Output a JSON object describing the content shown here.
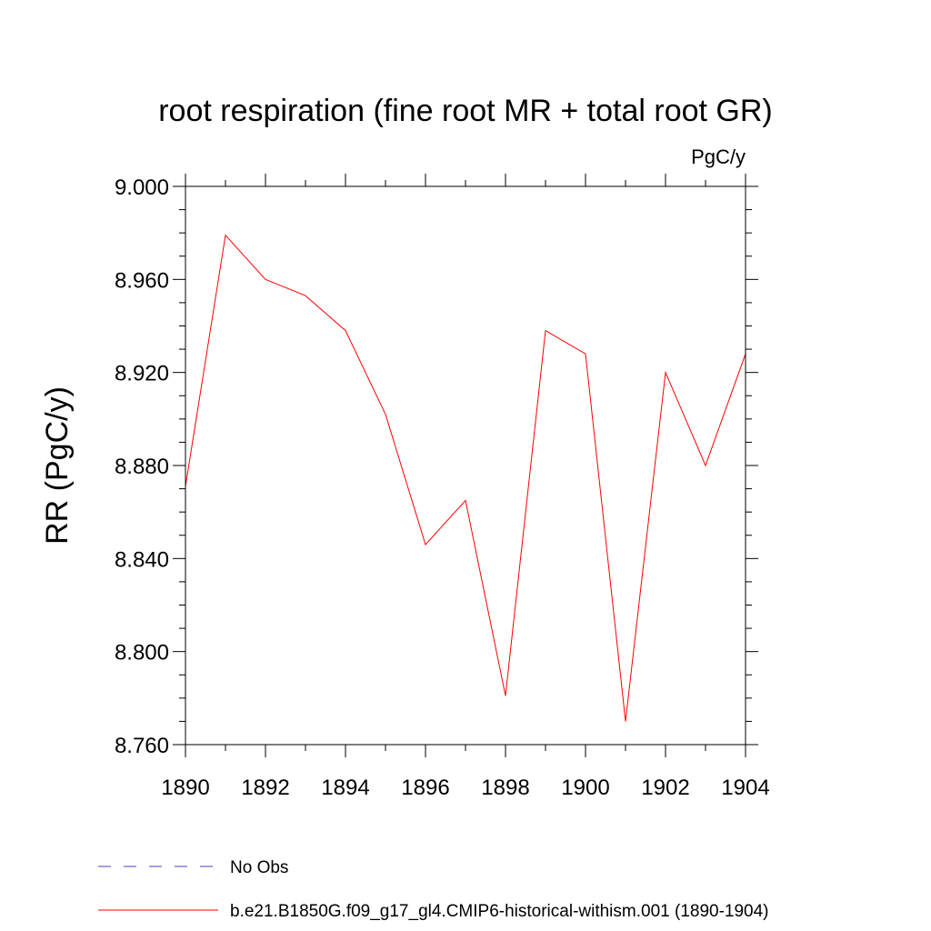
{
  "chart_data": {
    "type": "line",
    "title": "root respiration (fine root MR + total root GR)",
    "units": "PgC/y",
    "ylabel": "RR  (PgC/y)",
    "xlabel": "",
    "xlim": [
      1890,
      1904
    ],
    "ylim": [
      8.76,
      9.0
    ],
    "xticks": [
      1890,
      1892,
      1894,
      1896,
      1898,
      1900,
      1902,
      1904
    ],
    "xtick_labels": [
      "1890",
      "1892",
      "1894",
      "1896",
      "1898",
      "1900",
      "1902",
      "1904"
    ],
    "yticks": [
      8.76,
      8.8,
      8.84,
      8.88,
      8.92,
      8.96,
      9.0
    ],
    "ytick_labels": [
      "8.760",
      "8.800",
      "8.840",
      "8.880",
      "8.920",
      "8.960",
      "9.000"
    ],
    "grid": false,
    "legend_position": "bottom-left",
    "series": [
      {
        "name": "b.e21.B1850G.f09_g17_gl4.CMIP6-historical-withism.001 (1890-1904)",
        "color": "#ff0000",
        "style": "solid",
        "x": [
          1890,
          1891,
          1892,
          1893,
          1894,
          1895,
          1896,
          1897,
          1898,
          1899,
          1900,
          1901,
          1902,
          1903,
          1904
        ],
        "y": [
          8.871,
          8.979,
          8.96,
          8.953,
          8.938,
          8.902,
          8.846,
          8.865,
          8.781,
          8.938,
          8.928,
          8.77,
          8.92,
          8.88,
          8.928
        ]
      },
      {
        "name": "No Obs",
        "color": "#4b3fb8",
        "style": "dashed",
        "x": [],
        "y": []
      }
    ]
  }
}
